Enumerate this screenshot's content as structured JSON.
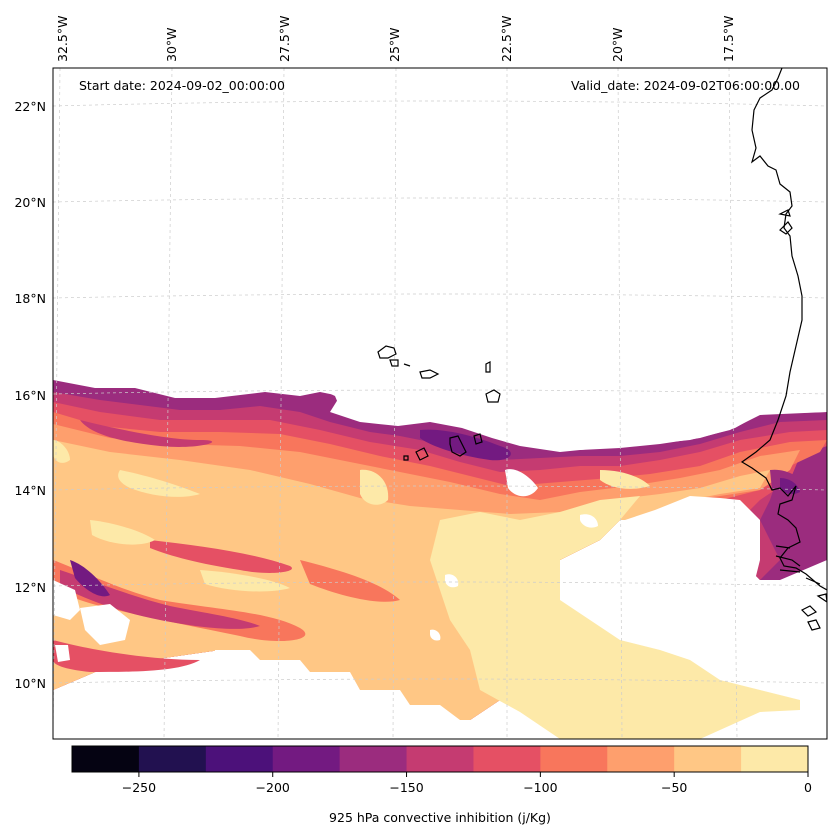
{
  "map": {
    "start_label": "Start date: 2024-09-02_00:00:00",
    "valid_label": "Valid_date: 2024-09-02T06:00:00.00",
    "lon_labels": [
      "32.5°W",
      "30°W",
      "27.5°W",
      "25°W",
      "22.5°W",
      "20°W",
      "17.5°W"
    ],
    "lat_labels": [
      "22°N",
      "20°N",
      "18°N",
      "16°N",
      "14°N",
      "12°N",
      "10°N"
    ],
    "extent": {
      "lon_min": -33.0,
      "lon_max": -15.5,
      "lat_min": 9.0,
      "lat_max": 22.6
    }
  },
  "colorbar": {
    "title": "925 hPa convective inhibition (j/Kg)",
    "ticks": [
      "−250",
      "−200",
      "−150",
      "−100",
      "−50",
      "0"
    ],
    "levels": [
      -275,
      -250,
      -225,
      -200,
      -175,
      -150,
      -125,
      -100,
      -75,
      -50,
      -25,
      0
    ],
    "colors": [
      "#050312",
      "#221150",
      "#4c117a",
      "#731a81",
      "#9b2c7e",
      "#c53b71",
      "#e55064",
      "#f8765c",
      "#fe9f6d",
      "#ffc785",
      "#fde9a8"
    ]
  }
}
